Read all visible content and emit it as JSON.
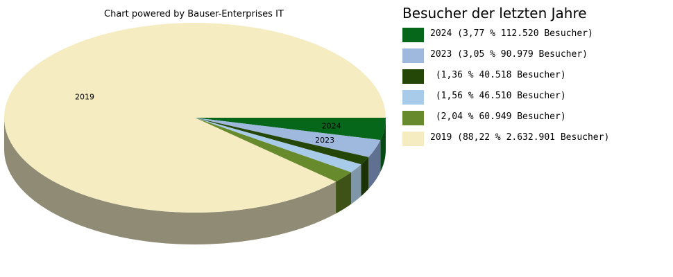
{
  "credit": "Chart powered by Bauser-Enterprises IT",
  "chart_data": {
    "type": "pie",
    "title": "Besucher der letzten Jahre",
    "slices": [
      {
        "label": "2024",
        "legend": "2024 (3,77 % 112.520 Besucher)",
        "percent": 3.77,
        "value": 112520,
        "color": "#06661a",
        "side_color": "#064a14"
      },
      {
        "label": "2023",
        "legend": "2023 (3,05 % 90.979 Besucher)",
        "percent": 3.05,
        "value": 90979,
        "color": "#9fb8de",
        "side_color": "#5f7090"
      },
      {
        "label": "",
        "legend": " (1,36 % 40.518 Besucher)",
        "percent": 1.36,
        "value": 40518,
        "color": "#244708",
        "side_color": "#1a3206"
      },
      {
        "label": "",
        "legend": " (1,56 % 46.510 Besucher)",
        "percent": 1.56,
        "value": 46510,
        "color": "#a9cbea",
        "side_color": "#7e96a8"
      },
      {
        "label": "",
        "legend": " (2,04 % 60.949 Besucher)",
        "percent": 2.04,
        "value": 60949,
        "color": "#678a2c",
        "side_color": "#3e5218"
      },
      {
        "label": "2019",
        "legend": "2019 (88,22 % 2.632.901 Besucher)",
        "percent": 88.22,
        "value": 2632901,
        "color": "#f5ecc2",
        "side_color": "#908b74"
      }
    ]
  }
}
